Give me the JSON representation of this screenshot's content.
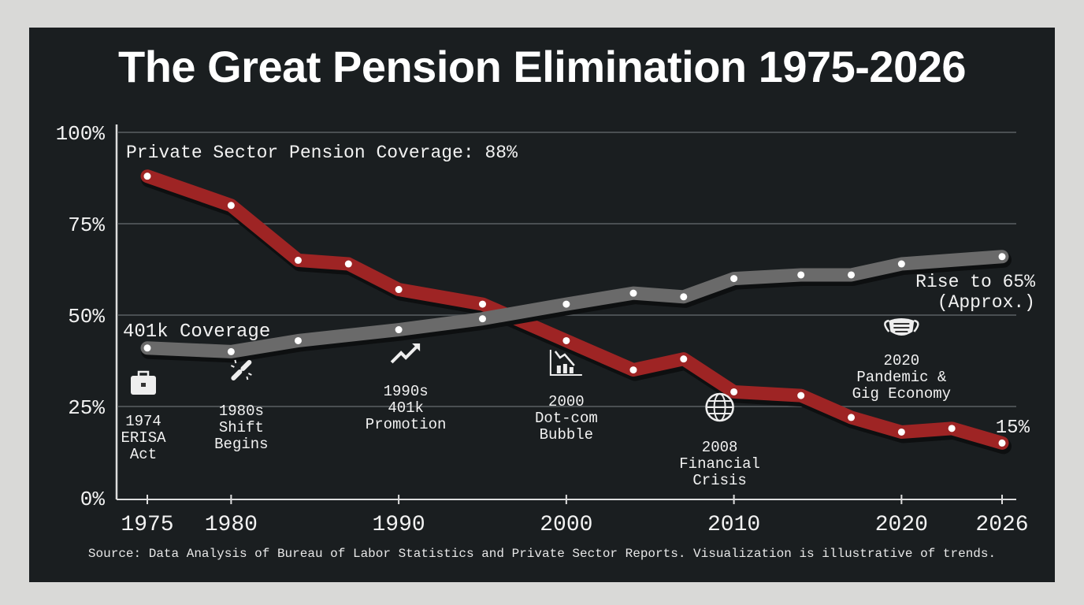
{
  "chart_data": {
    "type": "line",
    "title": "The Great Pension Elimination 1975-2026",
    "xlabel": "",
    "ylabel": "",
    "xlim": [
      1975,
      2026
    ],
    "ylim": [
      0,
      100
    ],
    "x_ticks": [
      1975,
      1980,
      1990,
      2000,
      2010,
      2020,
      2026
    ],
    "x_tick_labels": [
      "1975",
      "1980",
      "1990",
      "2000",
      "2010",
      "2020",
      "2026"
    ],
    "y_ticks": [
      0,
      25,
      50,
      75,
      100
    ],
    "y_tick_labels": [
      "0%",
      "25%",
      "50%",
      "75%",
      "100%"
    ],
    "grid": true,
    "series": [
      {
        "name": "Private Sector Pension Coverage",
        "color": "#9e2424",
        "x": [
          1975,
          1980,
          1984,
          1987,
          1990,
          1995,
          2000,
          2004,
          2007,
          2010,
          2014,
          2017,
          2020,
          2023,
          2026
        ],
        "values": [
          88,
          80,
          65,
          64,
          57,
          53,
          43,
          35,
          38,
          29,
          28,
          22,
          18,
          19,
          15
        ]
      },
      {
        "name": "401k Coverage",
        "color": "#6a6a6a",
        "x": [
          1975,
          1980,
          1984,
          1990,
          1995,
          2000,
          2004,
          2007,
          2010,
          2014,
          2017,
          2020,
          2026
        ],
        "values": [
          41,
          40,
          43,
          46,
          49,
          53,
          56,
          55,
          60,
          61,
          61,
          64,
          66
        ]
      }
    ],
    "series_labels": {
      "pension": "Private Sector Pension Coverage: 88%",
      "k401": "401k Coverage",
      "k401_end": [
        "Rise to 65%",
        "(Approx.)"
      ],
      "pension_end": "15%"
    },
    "annotations": [
      {
        "year": 1975,
        "icon": "briefcase-icon",
        "lines": [
          "1974",
          "ERISA",
          "Act"
        ]
      },
      {
        "year": 1980,
        "icon": "broken-link-icon",
        "lines": [
          "1980s",
          "Shift",
          "Begins"
        ]
      },
      {
        "year": 1990,
        "icon": "trend-up-icon",
        "lines": [
          "1990s",
          "401k",
          "Promotion"
        ]
      },
      {
        "year": 2000,
        "icon": "chart-down-icon",
        "lines": [
          "2000",
          "Dot-com",
          "Bubble"
        ]
      },
      {
        "year": 2010,
        "icon": "globe-icon",
        "lines": [
          "2008",
          "Financial",
          "Crisis"
        ]
      },
      {
        "year": 2020,
        "icon": "face-mask-icon",
        "lines": [
          "2020",
          "Pandemic &",
          "Gig Economy"
        ]
      }
    ]
  },
  "source": "Source: Data Analysis of Bureau of Labor Statistics and Private Sector Reports. Visualization is illustrative of trends."
}
